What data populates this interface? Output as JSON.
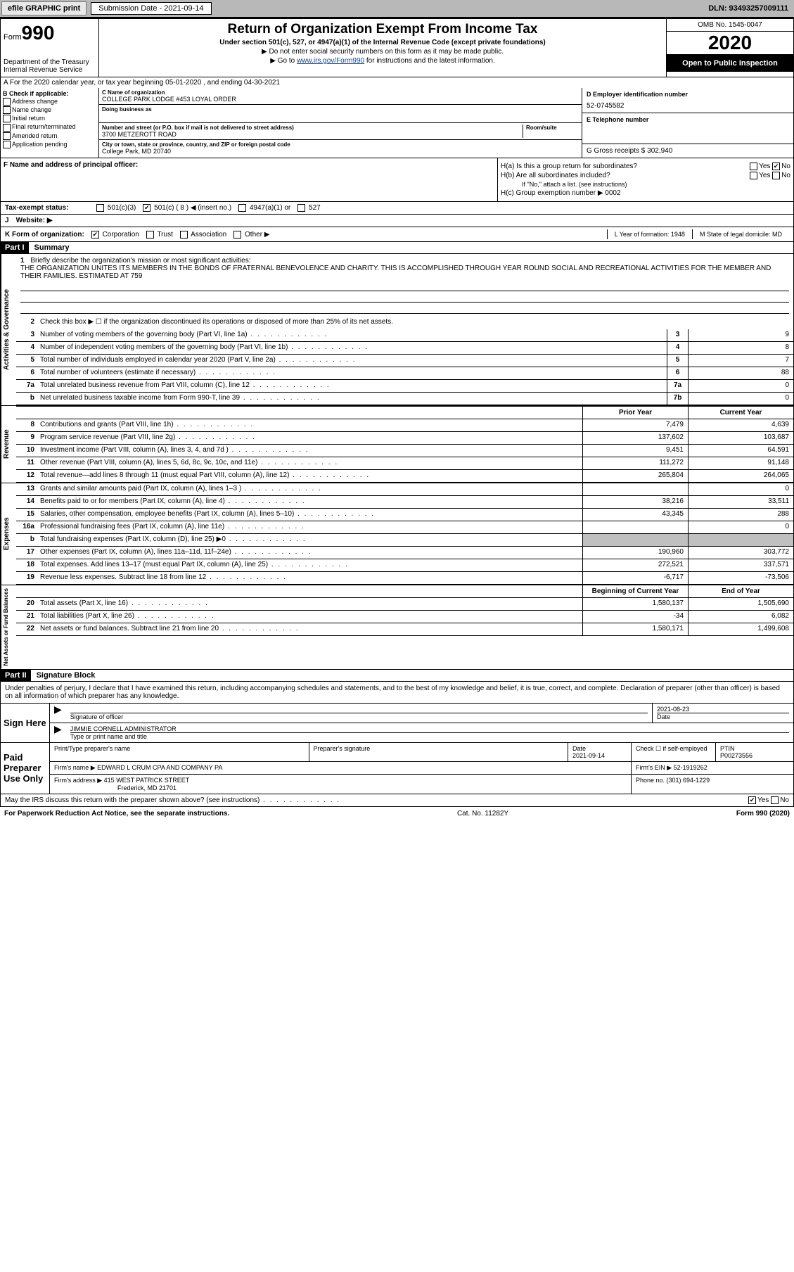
{
  "topbar": {
    "efile_label": "efile GRAPHIC print",
    "submission_label": "Submission Date - 2021-09-14",
    "dln": "DLN: 93493257009111"
  },
  "header": {
    "form_word": "Form",
    "form_num": "990",
    "dept": "Department of the Treasury",
    "irs": "Internal Revenue Service",
    "title": "Return of Organization Exempt From Income Tax",
    "subtitle": "Under section 501(c), 527, or 4947(a)(1) of the Internal Revenue Code (except private foundations)",
    "instr1": "▶ Do not enter social security numbers on this form as it may be made public.",
    "instr2_pre": "▶ Go to ",
    "instr2_link": "www.irs.gov/Form990",
    "instr2_post": " for instructions and the latest information.",
    "omb": "OMB No. 1545-0047",
    "year": "2020",
    "open_pub": "Open to Public Inspection"
  },
  "rowA": "A For the 2020 calendar year, or tax year beginning 05-01-2020   , and ending 04-30-2021",
  "colB": {
    "hdr": "B Check if applicable:",
    "items": [
      "Address change",
      "Name change",
      "Initial return",
      "Final return/terminated",
      "Amended return",
      "Application pending"
    ]
  },
  "colC": {
    "name_lab": "C Name of organization",
    "name_val": "COLLEGE PARK LODGE #453 LOYAL ORDER",
    "dba_lab": "Doing business as",
    "addr_lab": "Number and street (or P.O. box if mail is not delivered to street address)",
    "room_lab": "Room/suite",
    "addr_val": "3700 METZEROTT ROAD",
    "city_lab": "City or town, state or province, country, and ZIP or foreign postal code",
    "city_val": "College Park, MD  20740"
  },
  "colD": {
    "ein_lab": "D Employer identification number",
    "ein_val": "52-0745582",
    "tel_lab": "E Telephone number",
    "gross_lab": "G Gross receipts $ 302,940"
  },
  "rowF": {
    "lab": "F  Name and address of principal officer:",
    "ha": "H(a)  Is this a group return for subordinates?",
    "hb": "H(b)  Are all subordinates included?",
    "hb_note": "If \"No,\" attach a list. (see instructions)",
    "hc": "H(c)  Group exemption number ▶  0002"
  },
  "statusRow": {
    "lab": "Tax-exempt status:",
    "c3": "501(c)(3)",
    "c_other": "501(c) ( 8 ) ◀ (insert no.)",
    "a1": "4947(a)(1) or",
    "527": "527"
  },
  "webRow": {
    "j": "J",
    "lab": "Website: ▶"
  },
  "kRow": {
    "lab": "K Form of organization:",
    "corp": "Corporation",
    "trust": "Trust",
    "assoc": "Association",
    "other": "Other ▶",
    "l_lab": "L Year of formation: 1948",
    "m_lab": "M State of legal domicile: MD"
  },
  "part1": {
    "hdr": "Part I",
    "title": "Summary"
  },
  "mission": {
    "num": "1",
    "lab": "Briefly describe the organization's mission or most significant activities:",
    "text": "THE ORGANIZATION UNITES ITS MEMBERS IN THE BONDS OF FRATERNAL BENEVOLENCE AND CHARITY. THIS IS ACCOMPLISHED THROUGH YEAR ROUND SOCIAL AND RECREATIONAL ACTIVITIES FOR THE MEMBER AND THEIR FAMILIES. ESTIMATED AT 759"
  },
  "governance": {
    "side": "Activities & Governance",
    "l2": "Check this box ▶ ☐ if the organization discontinued its operations or disposed of more than 25% of its net assets.",
    "lines": [
      {
        "n": "3",
        "d": "Number of voting members of the governing body (Part VI, line 1a)",
        "box": "3",
        "v": "9"
      },
      {
        "n": "4",
        "d": "Number of independent voting members of the governing body (Part VI, line 1b)",
        "box": "4",
        "v": "8"
      },
      {
        "n": "5",
        "d": "Total number of individuals employed in calendar year 2020 (Part V, line 2a)",
        "box": "5",
        "v": "7"
      },
      {
        "n": "6",
        "d": "Total number of volunteers (estimate if necessary)",
        "box": "6",
        "v": "88"
      },
      {
        "n": "7a",
        "d": "Total unrelated business revenue from Part VIII, column (C), line 12",
        "box": "7a",
        "v": "0"
      },
      {
        "n": "b",
        "d": "Net unrelated business taxable income from Form 990-T, line 39",
        "box": "7b",
        "v": "0"
      }
    ]
  },
  "twocol": {
    "prior": "Prior Year",
    "current": "Current Year",
    "boy": "Beginning of Current Year",
    "eoy": "End of Year"
  },
  "revenue": {
    "side": "Revenue",
    "lines": [
      {
        "n": "8",
        "d": "Contributions and grants (Part VIII, line 1h)",
        "py": "7,479",
        "cy": "4,639"
      },
      {
        "n": "9",
        "d": "Program service revenue (Part VIII, line 2g)",
        "py": "137,602",
        "cy": "103,687"
      },
      {
        "n": "10",
        "d": "Investment income (Part VIII, column (A), lines 3, 4, and 7d )",
        "py": "9,451",
        "cy": "64,591"
      },
      {
        "n": "11",
        "d": "Other revenue (Part VIII, column (A), lines 5, 6d, 8c, 9c, 10c, and 11e)",
        "py": "111,272",
        "cy": "91,148"
      },
      {
        "n": "12",
        "d": "Total revenue—add lines 8 through 11 (must equal Part VIII, column (A), line 12)",
        "py": "265,804",
        "cy": "264,065"
      }
    ]
  },
  "expenses": {
    "side": "Expenses",
    "lines": [
      {
        "n": "13",
        "d": "Grants and similar amounts paid (Part IX, column (A), lines 1–3 )",
        "py": "",
        "cy": "0"
      },
      {
        "n": "14",
        "d": "Benefits paid to or for members (Part IX, column (A), line 4)",
        "py": "38,216",
        "cy": "33,511"
      },
      {
        "n": "15",
        "d": "Salaries, other compensation, employee benefits (Part IX, column (A), lines 5–10)",
        "py": "43,345",
        "cy": "288"
      },
      {
        "n": "16a",
        "d": "Professional fundraising fees (Part IX, column (A), line 11e)",
        "py": "",
        "cy": "0"
      },
      {
        "n": "b",
        "d": "Total fundraising expenses (Part IX, column (D), line 25) ▶0",
        "py": "shaded",
        "cy": "shaded"
      },
      {
        "n": "17",
        "d": "Other expenses (Part IX, column (A), lines 11a–11d, 11f–24e)",
        "py": "190,960",
        "cy": "303,772"
      },
      {
        "n": "18",
        "d": "Total expenses. Add lines 13–17 (must equal Part IX, column (A), line 25)",
        "py": "272,521",
        "cy": "337,571"
      },
      {
        "n": "19",
        "d": "Revenue less expenses. Subtract line 18 from line 12",
        "py": "-6,717",
        "cy": "-73,506"
      }
    ]
  },
  "netassets": {
    "side": "Net Assets or Fund Balances",
    "lines": [
      {
        "n": "20",
        "d": "Total assets (Part X, line 16)",
        "py": "1,580,137",
        "cy": "1,505,690"
      },
      {
        "n": "21",
        "d": "Total liabilities (Part X, line 26)",
        "py": "-34",
        "cy": "6,082"
      },
      {
        "n": "22",
        "d": "Net assets or fund balances. Subtract line 21 from line 20",
        "py": "1,580,171",
        "cy": "1,499,608"
      }
    ]
  },
  "part2": {
    "hdr": "Part II",
    "title": "Signature Block"
  },
  "sig": {
    "decl": "Under penalties of perjury, I declare that I have examined this return, including accompanying schedules and statements, and to the best of my knowledge and belief, it is true, correct, and complete. Declaration of preparer (other than officer) is based on all information of which preparer has any knowledge.",
    "sign_here": "Sign Here",
    "sig_officer": "Signature of officer",
    "date": "Date",
    "date_val": "2021-08-23",
    "name_title": "JIMMIE CORNELL  ADMINISTRATOR",
    "type_lab": "Type or print name and title",
    "paid": "Paid Preparer Use Only",
    "print_name": "Print/Type preparer's name",
    "prep_sig": "Preparer's signature",
    "prep_date_lab": "Date",
    "prep_date": "2021-09-14",
    "check_self": "Check ☐ if self-employed",
    "ptin_lab": "PTIN",
    "ptin": "P00273556",
    "firm_name_lab": "Firm's name     ▶",
    "firm_name": "EDWARD L CRUM CPA AND COMPANY PA",
    "firm_ein_lab": "Firm's EIN ▶",
    "firm_ein": "52-1919262",
    "firm_addr_lab": "Firm's address ▶",
    "firm_addr1": "415 WEST PATRICK STREET",
    "firm_addr2": "Frederick, MD  21701",
    "phone_lab": "Phone no. (301) 694-1229"
  },
  "footer": {
    "irs_q": "May the IRS discuss this return with the preparer shown above? (see instructions)",
    "yes": "Yes",
    "no": "No",
    "pra": "For Paperwork Reduction Act Notice, see the separate instructions.",
    "cat": "Cat. No. 11282Y",
    "form": "Form 990 (2020)"
  }
}
